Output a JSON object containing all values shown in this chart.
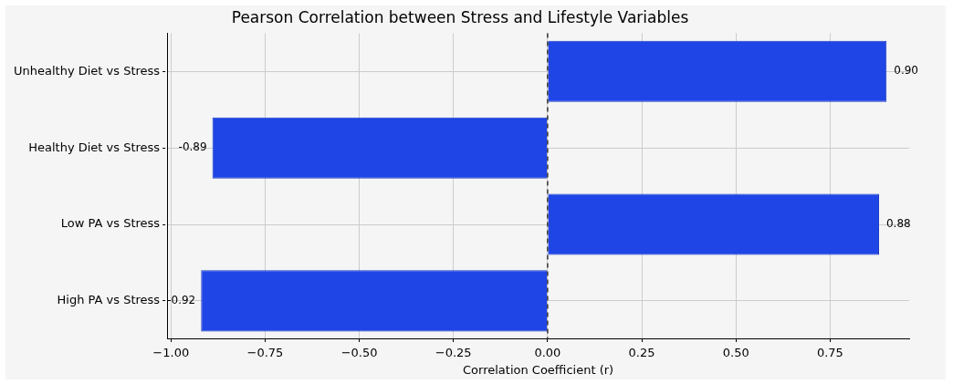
{
  "chart_data": {
    "type": "bar",
    "orientation": "horizontal",
    "title": "Pearson Correlation between Stress and Lifestyle Variables",
    "xlabel": "Correlation Coefficient (r)",
    "categories": [
      "Unhealthy Diet vs Stress",
      "Healthy Diet vs Stress",
      "Low PA vs Stress",
      "High PA vs Stress"
    ],
    "values": [
      0.9,
      -0.89,
      0.88,
      -0.92
    ],
    "color": "#1f45e6",
    "value_labels": [
      "0.90",
      "-0.89",
      "0.88",
      "-0.92"
    ],
    "xlim": [
      -1.01,
      0.96
    ],
    "xticks": [
      {
        "value": -1,
        "label": "−1.00"
      },
      {
        "value": -0.75,
        "label": "−0.75"
      },
      {
        "value": -0.5,
        "label": "−0.50"
      },
      {
        "value": -0.25,
        "label": "−0.25"
      },
      {
        "value": 0,
        "label": "0.00"
      },
      {
        "value": 0.25,
        "label": "0.25"
      },
      {
        "value": 0.5,
        "label": "0.50"
      },
      {
        "value": 0.75,
        "label": "0.75"
      }
    ],
    "ref_lines": [
      {
        "axis": "x",
        "value": 0,
        "color": "#333333",
        "line_style": "dashed"
      }
    ],
    "grid": true
  }
}
